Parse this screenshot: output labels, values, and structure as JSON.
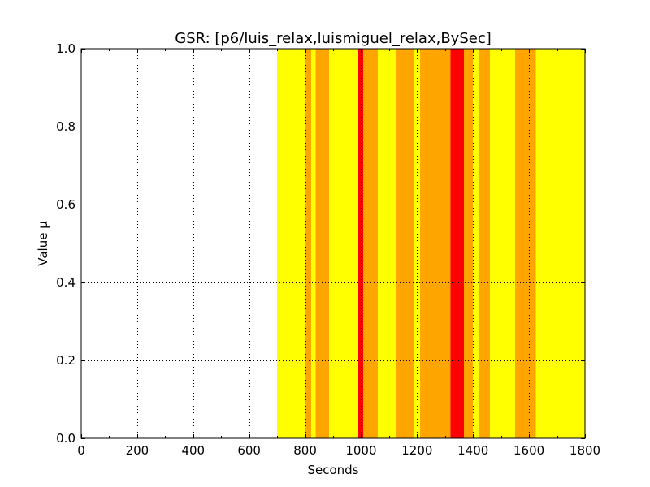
{
  "chart_data": {
    "type": "bar",
    "title": "GSR: [p6/luis_relax,luismiguel_relax,BySec]",
    "xlabel": "Seconds",
    "ylabel": "Value μ",
    "xlim": [
      0,
      1800
    ],
    "ylim": [
      0.0,
      1.0
    ],
    "xticks": [
      0,
      200,
      400,
      600,
      800,
      1000,
      1200,
      1400,
      1600,
      1800
    ],
    "xtick_labels": [
      "0",
      "200",
      "400",
      "600",
      "800",
      "1000",
      "1200",
      "1400",
      "1600",
      "1800"
    ],
    "yticks": [
      0.0,
      0.2,
      0.4,
      0.6,
      0.8,
      1.0
    ],
    "ytick_labels": [
      "0.0",
      "0.2",
      "0.4",
      "0.6",
      "0.8",
      "1.0"
    ],
    "grid": true,
    "colors": {
      "yellow": "#ffff00",
      "orange": "#ffa500",
      "red": "#ff0000"
    },
    "bands": [
      {
        "start": 700,
        "end": 800,
        "value": 1.0,
        "color": "yellow"
      },
      {
        "start": 800,
        "end": 822,
        "value": 1.0,
        "color": "orange"
      },
      {
        "start": 822,
        "end": 838,
        "value": 1.0,
        "color": "yellow"
      },
      {
        "start": 838,
        "end": 885,
        "value": 1.0,
        "color": "orange"
      },
      {
        "start": 885,
        "end": 990,
        "value": 1.0,
        "color": "yellow"
      },
      {
        "start": 990,
        "end": 1008,
        "value": 1.0,
        "color": "red"
      },
      {
        "start": 1008,
        "end": 1060,
        "value": 1.0,
        "color": "orange"
      },
      {
        "start": 1060,
        "end": 1125,
        "value": 1.0,
        "color": "yellow"
      },
      {
        "start": 1125,
        "end": 1190,
        "value": 1.0,
        "color": "orange"
      },
      {
        "start": 1190,
        "end": 1200,
        "value": 1.0,
        "color": "yellow"
      },
      {
        "start": 1205,
        "end": 1210,
        "value": 1.0,
        "color": "yellow"
      },
      {
        "start": 1210,
        "end": 1320,
        "value": 1.0,
        "color": "orange"
      },
      {
        "start": 1320,
        "end": 1368,
        "value": 1.0,
        "color": "red"
      },
      {
        "start": 1368,
        "end": 1400,
        "value": 1.0,
        "color": "orange"
      },
      {
        "start": 1400,
        "end": 1420,
        "value": 1.0,
        "color": "yellow"
      },
      {
        "start": 1420,
        "end": 1460,
        "value": 1.0,
        "color": "orange"
      },
      {
        "start": 1460,
        "end": 1550,
        "value": 1.0,
        "color": "yellow"
      },
      {
        "start": 1550,
        "end": 1625,
        "value": 1.0,
        "color": "orange"
      },
      {
        "start": 1625,
        "end": 1800,
        "value": 1.0,
        "color": "yellow"
      }
    ]
  }
}
